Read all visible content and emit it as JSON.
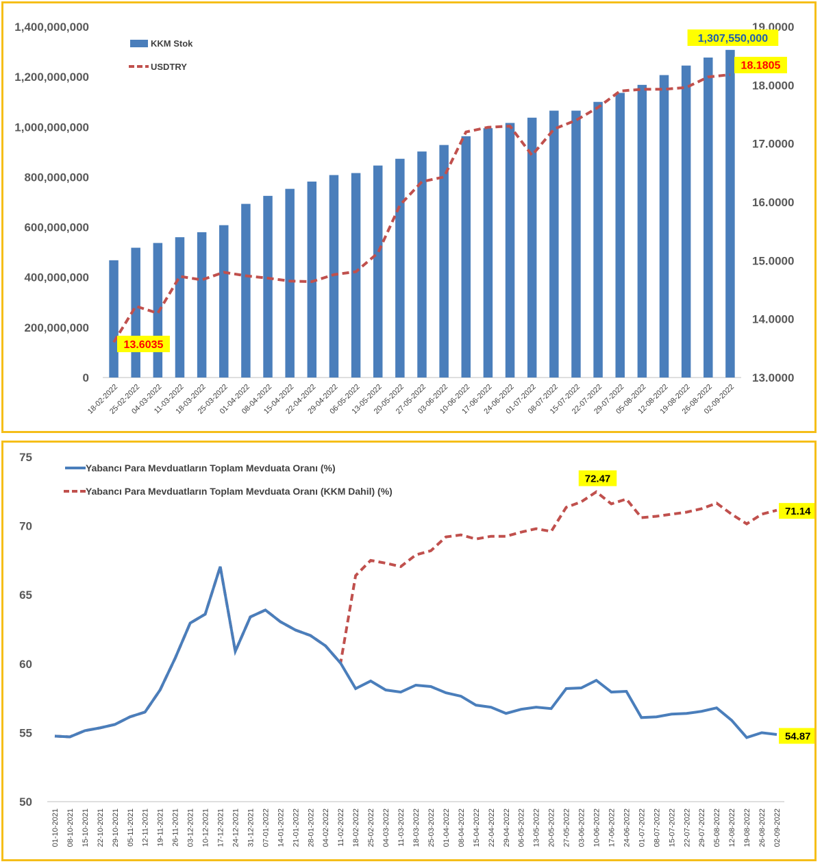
{
  "chart_data": [
    {
      "type": "bar",
      "title": "",
      "categories": [
        "18-02-2022",
        "25-02-2022",
        "04-03-2022",
        "11-03-2022",
        "18-03-2022",
        "25-03-2022",
        "01-04-2022",
        "08-04-2022",
        "15-04-2022",
        "22-04-2022",
        "29-04-2022",
        "06-05-2022",
        "13-05-2022",
        "20-05-2022",
        "27-05-2022",
        "03-06-2022",
        "10-06-2022",
        "17-06-2022",
        "24-06-2022",
        "01-07-2022",
        "08-07-2022",
        "15-07-2022",
        "22-07-2022",
        "29-07-2022",
        "05-08-2022",
        "12-08-2022",
        "19-08-2022",
        "26-08-2022",
        "02-09-2022"
      ],
      "series": [
        {
          "name": "KKM Stok",
          "type": "bar",
          "axis": "left",
          "color": "#4a7ebb",
          "values": [
            468000000,
            518000000,
            537000000,
            560000000,
            580000000,
            608000000,
            693000000,
            725000000,
            753000000,
            782000000,
            808000000,
            816000000,
            846000000,
            873000000,
            902000000,
            928000000,
            963000000,
            995000000,
            1016000000,
            1037000000,
            1065000000,
            1065000000,
            1100000000,
            1136000000,
            1168000000,
            1207000000,
            1245000000,
            1277000000,
            1307550000
          ]
        },
        {
          "name": "USDTRY",
          "type": "line",
          "axis": "right",
          "style": "dashed",
          "color": "#c0504d",
          "values": [
            13.6035,
            14.22,
            14.1,
            14.73,
            14.67,
            14.8,
            14.74,
            14.7,
            14.65,
            14.64,
            14.76,
            14.81,
            15.13,
            15.95,
            16.35,
            16.43,
            17.2,
            17.28,
            17.3,
            16.8,
            17.25,
            17.4,
            17.62,
            17.9,
            17.93,
            17.93,
            17.96,
            18.14,
            18.1805
          ]
        }
      ],
      "yticks_left": [
        "0",
        "200,000,000",
        "400,000,000",
        "600,000,000",
        "800,000,000",
        "1,000,000,000",
        "1,200,000,000",
        "1,400,000,000"
      ],
      "yticks_right": [
        "13.0000",
        "14.0000",
        "15.0000",
        "16.0000",
        "17.0000",
        "18.0000",
        "19.0000"
      ],
      "ylim_left": [
        0,
        1400000000
      ],
      "ylim_right": [
        13,
        19
      ],
      "legend": "top-left",
      "annotations": [
        {
          "text": "1,307,550,000",
          "target": "KKM Stok last",
          "bg": "#ffff00",
          "color": "#1f5fae"
        },
        {
          "text": "18.1805",
          "target": "USDTRY last",
          "bg": "#ffff00",
          "color": "#ff0000"
        },
        {
          "text": "13.6035",
          "target": "USDTRY first",
          "bg": "#ffff00",
          "color": "#ff0000"
        }
      ]
    },
    {
      "type": "line",
      "title": "",
      "categories": [
        "01-10-2021",
        "08-10-2021",
        "15-10-2021",
        "22-10-2021",
        "29-10-2021",
        "05-11-2021",
        "12-11-2021",
        "19-11-2021",
        "26-11-2021",
        "03-12-2021",
        "10-12-2021",
        "17-12-2021",
        "24-12-2021",
        "31-12-2021",
        "07-01-2022",
        "14-01-2022",
        "21-01-2022",
        "28-01-2022",
        "04-02-2022",
        "11-02-2022",
        "18-02-2022",
        "25-02-2022",
        "04-03-2022",
        "11-03-2022",
        "18-03-2022",
        "25-03-2022",
        "01-04-2022",
        "08-04-2022",
        "15-04-2022",
        "22-04-2022",
        "29-04-2022",
        "06-05-2022",
        "13-05-2022",
        "20-05-2022",
        "27-05-2022",
        "03-06-2022",
        "10-06-2022",
        "17-06-2022",
        "24-06-2022",
        "01-07-2022",
        "08-07-2022",
        "15-07-2022",
        "22-07-2022",
        "29-07-2022",
        "05-08-2022",
        "12-08-2022",
        "19-08-2022",
        "26-08-2022",
        "02-09-2022"
      ],
      "series": [
        {
          "name": "Yabancı Para Mevduatların Toplam Mevduata Oranı (%)",
          "style": "solid",
          "color": "#4a7ebb",
          "values": [
            54.75,
            54.7,
            55.15,
            55.35,
            55.6,
            56.15,
            56.5,
            58.1,
            60.4,
            62.95,
            63.6,
            67.05,
            60.9,
            63.4,
            63.9,
            63.05,
            62.45,
            62.05,
            61.3,
            60.05,
            58.2,
            58.75,
            58.1,
            57.95,
            58.45,
            58.35,
            57.9,
            57.65,
            57.0,
            56.85,
            56.4,
            56.7,
            56.85,
            56.75,
            58.2,
            58.25,
            58.8,
            57.95,
            58.0,
            56.1,
            56.15,
            56.35,
            56.4,
            56.55,
            56.8,
            55.9,
            54.65,
            55.0,
            54.87
          ]
        },
        {
          "name": "Yabancı Para Mevduatların Toplam Mevduata Oranı (KKM Dahil) (%)",
          "style": "dashed",
          "color": "#c0504d",
          "values": [
            54.75,
            54.7,
            55.15,
            55.35,
            55.6,
            56.15,
            56.5,
            58.1,
            60.4,
            62.95,
            63.6,
            67.05,
            60.9,
            63.4,
            63.9,
            63.05,
            62.45,
            62.05,
            61.3,
            60.05,
            66.4,
            67.5,
            67.3,
            67.05,
            67.9,
            68.2,
            69.2,
            69.35,
            69.05,
            69.25,
            69.25,
            69.55,
            69.8,
            69.6,
            71.35,
            71.75,
            72.47,
            71.6,
            71.95,
            70.6,
            70.7,
            70.85,
            71.0,
            71.25,
            71.65,
            70.85,
            70.15,
            70.85,
            71.14
          ]
        }
      ],
      "yticks": [
        "50",
        "55",
        "60",
        "65",
        "70",
        "75"
      ],
      "ylim": [
        50,
        75
      ],
      "legend": "top-left",
      "annotations": [
        {
          "text": "72.47",
          "target": "KKM Dahil peak",
          "bg": "#ffff00",
          "color": "#000000"
        },
        {
          "text": "71.14",
          "target": "KKM Dahil last",
          "bg": "#ffff00",
          "color": "#000000"
        },
        {
          "text": "54.87",
          "target": "YP last",
          "bg": "#ffff00",
          "color": "#000000"
        }
      ]
    }
  ]
}
